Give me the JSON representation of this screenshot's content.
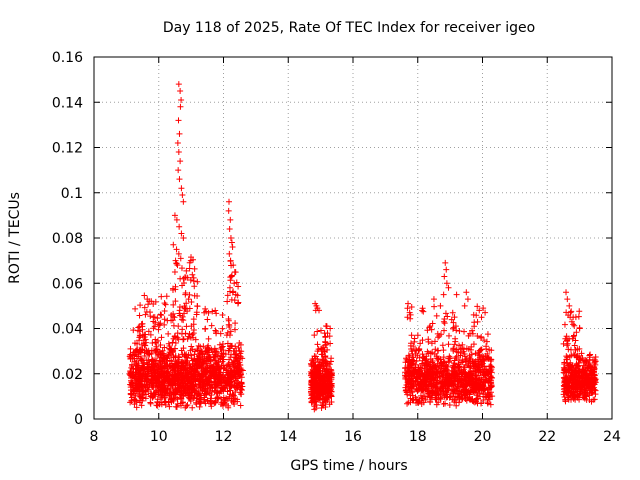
{
  "chart_data": {
    "type": "scatter",
    "title": "Day 118 of 2025, Rate Of TEC Index for receiver igeo",
    "xlabel": "GPS time / hours",
    "ylabel": "ROTI / TECUs",
    "xlim": [
      8,
      24
    ],
    "ylim": [
      0,
      0.16
    ],
    "xticks": [
      8,
      10,
      12,
      14,
      16,
      18,
      20,
      22,
      24
    ],
    "xtick_labels": [
      "8",
      "10",
      "12",
      "14",
      "16",
      "18",
      "20",
      "22",
      "24"
    ],
    "yticks": [
      0,
      0.02,
      0.04,
      0.06,
      0.08,
      0.1,
      0.12,
      0.14,
      0.16
    ],
    "ytick_labels": [
      "0",
      "0.02",
      "0.04",
      "0.06",
      "0.08",
      "0.1",
      "0.12",
      "0.14",
      "0.16"
    ],
    "grid": true,
    "marker": "+",
    "marker_color": "#ff0000",
    "seed": 1180,
    "dense_clusters": [
      {
        "x_start": 9.1,
        "x_end": 12.6,
        "n": 1400,
        "y_low": 0.004,
        "y_high": 0.034,
        "y_mode": 0.017
      },
      {
        "x_start": 14.7,
        "x_end": 15.35,
        "n": 420,
        "y_low": 0.004,
        "y_high": 0.03,
        "y_mode": 0.013
      },
      {
        "x_start": 17.6,
        "x_end": 20.3,
        "n": 1000,
        "y_low": 0.005,
        "y_high": 0.032,
        "y_mode": 0.016
      },
      {
        "x_start": 22.5,
        "x_end": 23.5,
        "n": 420,
        "y_low": 0.007,
        "y_high": 0.03,
        "y_mode": 0.016
      }
    ],
    "sparse_clusters": [
      {
        "x_start": 9.2,
        "x_end": 10.5,
        "n": 90,
        "y_low": 0.03,
        "y_high": 0.055
      },
      {
        "x_start": 10.4,
        "x_end": 11.2,
        "n": 80,
        "y_low": 0.035,
        "y_high": 0.075
      },
      {
        "x_start": 11.4,
        "x_end": 12.0,
        "n": 30,
        "y_low": 0.03,
        "y_high": 0.05
      },
      {
        "x_start": 12.1,
        "x_end": 12.5,
        "n": 40,
        "y_low": 0.03,
        "y_high": 0.07
      },
      {
        "x_start": 14.8,
        "x_end": 15.3,
        "n": 25,
        "y_low": 0.03,
        "y_high": 0.042
      },
      {
        "x_start": 17.6,
        "x_end": 19.2,
        "n": 50,
        "y_low": 0.03,
        "y_high": 0.05
      },
      {
        "x_start": 19.1,
        "x_end": 20.2,
        "n": 40,
        "y_low": 0.03,
        "y_high": 0.05
      },
      {
        "x_start": 22.5,
        "x_end": 23.0,
        "n": 30,
        "y_low": 0.03,
        "y_high": 0.048
      }
    ],
    "points": [
      [
        10.62,
        0.148
      ],
      [
        10.66,
        0.145
      ],
      [
        10.69,
        0.141
      ],
      [
        10.67,
        0.138
      ],
      [
        10.61,
        0.132
      ],
      [
        10.64,
        0.126
      ],
      [
        10.59,
        0.122
      ],
      [
        10.62,
        0.118
      ],
      [
        10.66,
        0.114
      ],
      [
        10.6,
        0.11
      ],
      [
        10.64,
        0.106
      ],
      [
        10.7,
        0.102
      ],
      [
        10.73,
        0.099
      ],
      [
        10.76,
        0.096
      ],
      [
        10.5,
        0.09
      ],
      [
        10.56,
        0.088
      ],
      [
        10.63,
        0.085
      ],
      [
        10.7,
        0.082
      ],
      [
        10.76,
        0.08
      ],
      [
        10.45,
        0.077
      ],
      [
        10.55,
        0.075
      ],
      [
        10.62,
        0.073
      ],
      [
        10.68,
        0.071
      ],
      [
        10.52,
        0.07
      ],
      [
        10.58,
        0.068
      ],
      [
        10.5,
        0.065
      ],
      [
        10.66,
        0.062
      ],
      [
        10.72,
        0.059
      ],
      [
        10.44,
        0.057
      ],
      [
        10.82,
        0.055
      ],
      [
        12.17,
        0.096
      ],
      [
        12.16,
        0.092
      ],
      [
        12.21,
        0.088
      ],
      [
        12.19,
        0.084
      ],
      [
        12.23,
        0.08
      ],
      [
        12.26,
        0.078
      ],
      [
        12.28,
        0.076
      ],
      [
        12.18,
        0.073
      ],
      [
        12.22,
        0.07
      ],
      [
        12.3,
        0.068
      ],
      [
        12.35,
        0.065
      ],
      [
        12.25,
        0.063
      ],
      [
        12.33,
        0.06
      ],
      [
        12.2,
        0.058
      ],
      [
        12.38,
        0.055
      ],
      [
        14.83,
        0.051
      ],
      [
        14.87,
        0.05
      ],
      [
        14.9,
        0.049
      ],
      [
        14.95,
        0.048
      ],
      [
        14.85,
        0.048
      ],
      [
        17.7,
        0.051
      ],
      [
        17.75,
        0.047
      ],
      [
        17.78,
        0.046
      ],
      [
        17.68,
        0.045
      ],
      [
        18.85,
        0.069
      ],
      [
        18.88,
        0.066
      ],
      [
        18.82,
        0.063
      ],
      [
        18.9,
        0.06
      ],
      [
        18.95,
        0.058
      ],
      [
        18.8,
        0.055
      ],
      [
        19.2,
        0.055
      ],
      [
        19.5,
        0.056
      ],
      [
        19.55,
        0.053
      ],
      [
        19.45,
        0.05
      ],
      [
        19.9,
        0.048
      ],
      [
        20.02,
        0.049
      ],
      [
        20.08,
        0.047
      ],
      [
        19.97,
        0.045
      ],
      [
        18.5,
        0.053
      ],
      [
        18.7,
        0.05
      ],
      [
        22.58,
        0.056
      ],
      [
        22.62,
        0.053
      ],
      [
        22.68,
        0.05
      ],
      [
        22.72,
        0.047
      ],
      [
        22.8,
        0.045
      ],
      [
        22.76,
        0.043
      ],
      [
        23.0,
        0.04
      ]
    ]
  }
}
